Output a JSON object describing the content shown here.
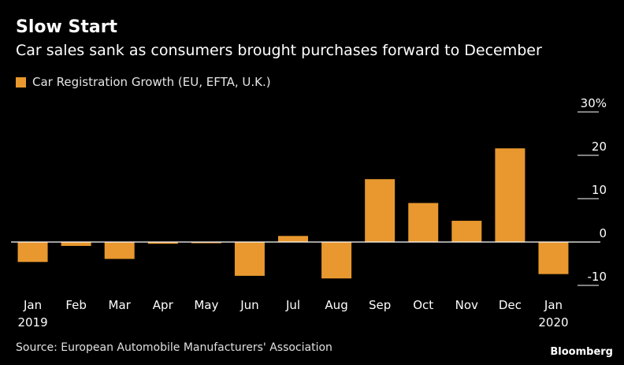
{
  "header": {
    "title": "Slow Start",
    "subtitle": "Car sales sank as consumers brought purchases forward to December"
  },
  "footer": {
    "source": "Source: European Automobile Manufacturers' Association",
    "brand": "Bloomberg"
  },
  "colors": {
    "bar": "#e8982e",
    "axis": "#ffffff",
    "gridline": "#ffffff",
    "background": "#000000"
  },
  "chart_data": {
    "type": "bar",
    "title": "Slow Start",
    "subtitle": "Car sales sank as consumers brought purchases forward to December",
    "categories": [
      "Jan",
      "Feb",
      "Mar",
      "Apr",
      "May",
      "Jun",
      "Jul",
      "Aug",
      "Sep",
      "Oct",
      "Nov",
      "Dec",
      "Jan"
    ],
    "year_labels": [
      "2019",
      "",
      "",
      "",
      "",
      "",
      "",
      "",
      "",
      "",
      "",
      "",
      "2020"
    ],
    "series": [
      {
        "name": "Car Registration Growth (EU, EFTA, U.K.)",
        "values": [
          -4.6,
          -0.9,
          -3.9,
          -0.4,
          -0.1,
          -7.8,
          1.4,
          -8.4,
          14.5,
          9.0,
          4.9,
          21.6,
          -7.4
        ]
      }
    ],
    "yticks": [
      30,
      20,
      10,
      0,
      -10
    ],
    "ytick_labels": [
      "30%",
      "20",
      "10",
      "0",
      "-10"
    ],
    "ylim": [
      -10,
      30
    ],
    "y_axis_position": "right",
    "grid": "short tick marks at right",
    "legend_position": "top-left",
    "xlabel": "",
    "ylabel": ""
  }
}
